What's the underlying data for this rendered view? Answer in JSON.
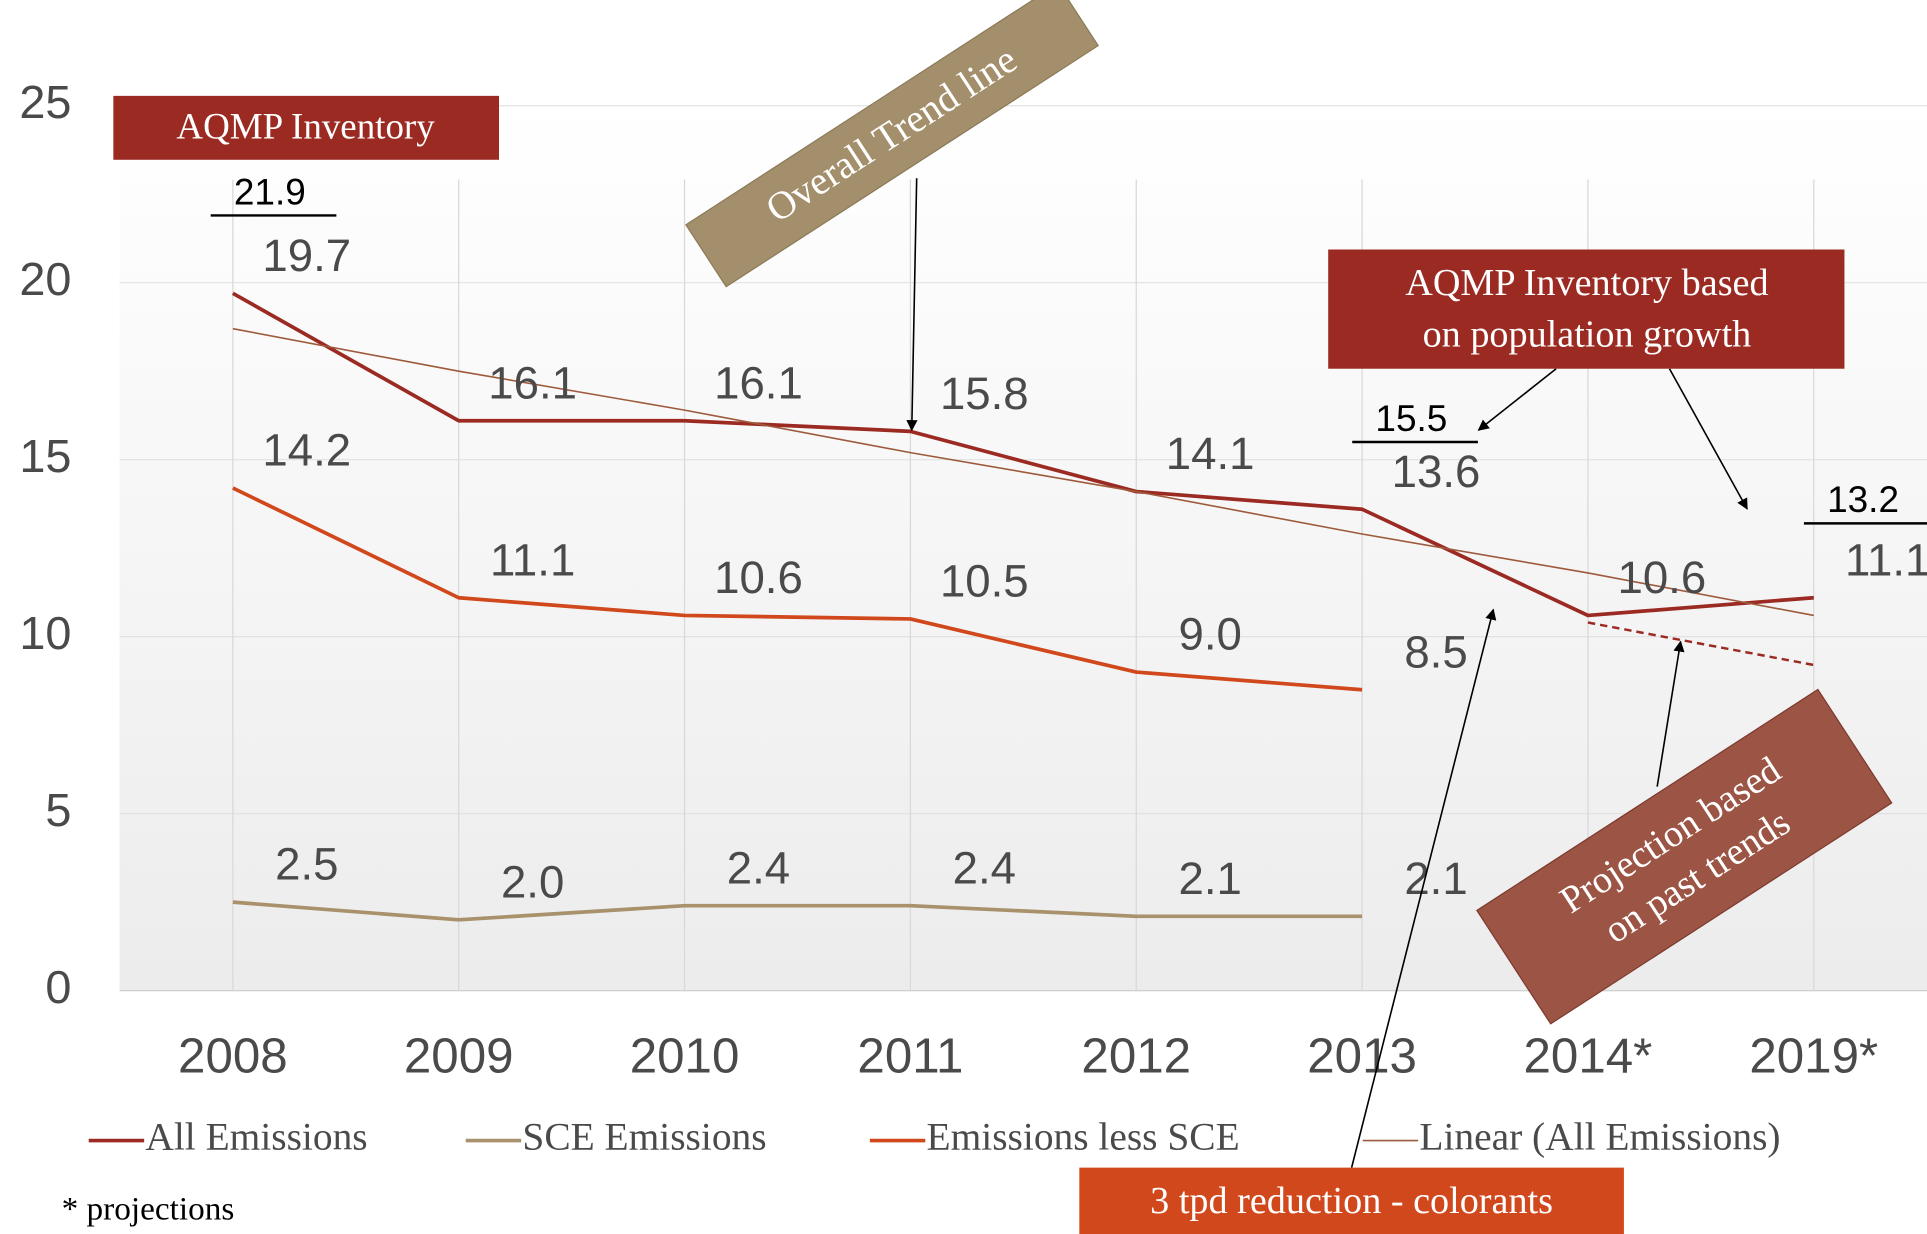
{
  "chart_data": {
    "type": "line",
    "categories": [
      "2008",
      "2009",
      "2010",
      "2011",
      "2012",
      "2013",
      "2014*",
      "2019*"
    ],
    "ylim": [
      0,
      25
    ],
    "yticks": [
      0,
      5,
      10,
      15,
      20,
      25
    ],
    "grid": true,
    "series": [
      {
        "name": "All Emissions",
        "color": "#9b2a22",
        "width": 3,
        "values": [
          19.7,
          16.1,
          16.1,
          15.8,
          14.1,
          13.6,
          10.6,
          11.1
        ]
      },
      {
        "name": "SCE Emissions",
        "color": "#a8916b",
        "width": 3,
        "values": [
          2.5,
          2.0,
          2.4,
          2.4,
          2.1,
          2.1,
          null,
          null
        ],
        "value_labels": [
          "2.5",
          "2.0",
          "2.4",
          "2.4",
          "2.1",
          "2.1",
          null,
          null
        ]
      },
      {
        "name": "Emissions less SCE",
        "color": "#d0481c",
        "width": 3,
        "values": [
          14.2,
          11.1,
          10.6,
          10.5,
          9.0,
          8.5,
          null,
          null
        ],
        "value_labels": [
          "14.2",
          "11.1",
          "10.6",
          "10.5",
          "9.0",
          "8.5",
          null,
          null
        ]
      },
      {
        "name": "Linear (All Emissions)",
        "color": "#9e5a3c",
        "width": 1.3,
        "no_labels": true,
        "values": [
          18.7,
          17.5,
          16.4,
          15.2,
          14.1,
          12.9,
          11.8,
          10.6
        ]
      }
    ],
    "projection": {
      "color": "#9b2a22",
      "values": [
        null,
        null,
        null,
        null,
        null,
        null,
        10.4,
        9.2
      ]
    },
    "aqmp_points": [
      {
        "category": "2008",
        "value": 21.9
      },
      {
        "category": "2013",
        "value": 15.5
      },
      {
        "category": "2019*",
        "value": 13.2
      }
    ],
    "annotations": {
      "aqmp": "AQMP Inventory",
      "trend": "Overall Trend line",
      "population": [
        "AQMP Inventory based",
        "on population growth"
      ],
      "projection": [
        "Projection based",
        "on past trends"
      ],
      "reduction": "3 tpd reduction - colorants",
      "footnote": "* projections"
    }
  }
}
